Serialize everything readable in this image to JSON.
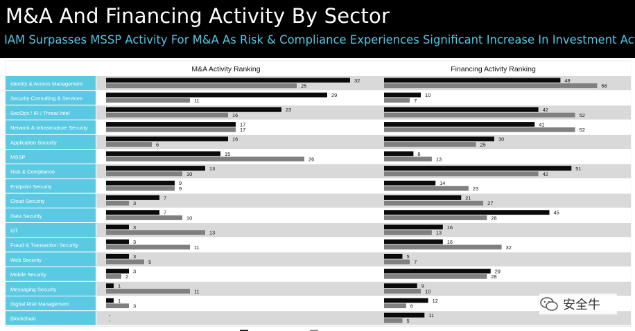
{
  "header": {
    "title": "M&A And Financing Activity By Sector",
    "subtitle": "IAM Surpasses MSSP Activity For M&A As Risk & Compliance Experiences Significant Increase In Investment Activity."
  },
  "colors": {
    "header_bg": "#000000",
    "subtitle": "#4fc8e6",
    "label_cell": "#5cc9e3",
    "series_2018": "#0a0a0a",
    "series_2017": "#808080",
    "row_alt": "#d9d9d9"
  },
  "watermark": {
    "text": "安全牛"
  },
  "chart_data": {
    "type": "bar",
    "orientation": "horizontal",
    "categories": [
      "Identity & Access Management",
      "Security Consulting & Services",
      "SecOps / IR / Threat Intel",
      "Network & Infrastructure Security",
      "Application Security",
      "MSSP",
      "Risk & Compliance",
      "Endpoint Security",
      "Cloud Security",
      "Data Security",
      "IoT",
      "Fraud & Transaction Security",
      "Web Security",
      "Mobile Security",
      "Messaging Security",
      "Digital Risk Management",
      "Blockchain"
    ],
    "panels": [
      {
        "title": "M&A Activity Ranking",
        "series": [
          {
            "values": [
              32,
              29,
              23,
              17,
              16,
              15,
              13,
              9,
              7,
              7,
              3,
              3,
              3,
              3,
              1,
              1,
              0
            ],
            "labels": [
              "32",
              "29",
              "23",
              "17",
              "16",
              "15",
              "13",
              "9",
              "7",
              "7",
              "3",
              "3",
              "3",
              "3",
              "1",
              "1",
              "-"
            ]
          },
          {
            "values": [
              25,
              11,
              16,
              17,
              6,
              26,
              10,
              9,
              3,
              10,
              13,
              11,
              5,
              2,
              11,
              3,
              0
            ],
            "labels": [
              "25",
              "11",
              "16",
              "17",
              "6",
              "26",
              "10",
              "9",
              "3",
              "10",
              "13",
              "11",
              "5",
              "2",
              "11",
              "3",
              "-"
            ]
          }
        ]
      },
      {
        "title": "Financing Activity Ranking",
        "series": [
          {
            "values": [
              48,
              10,
              42,
              41,
              30,
              8,
              51,
              14,
              21,
              45,
              16,
              16,
              5,
              29,
              9,
              12,
              11
            ],
            "labels": [
              "48",
              "10",
              "42",
              "41",
              "30",
              "8",
              "51",
              "14",
              "21",
              "45",
              "16",
              "16",
              "5",
              "29",
              "9",
              "12",
              "11"
            ]
          },
          {
            "values": [
              58,
              7,
              52,
              52,
              25,
              13,
              42,
              23,
              27,
              28,
              13,
              32,
              7,
              28,
              10,
              6,
              5
            ],
            "labels": [
              "58",
              "7",
              "52",
              "52",
              "25",
              "13",
              "42",
              "23",
              "27",
              "28",
              "13",
              "32",
              "7",
              "28",
              "10",
              "6",
              "5"
            ]
          }
        ]
      }
    ]
  }
}
